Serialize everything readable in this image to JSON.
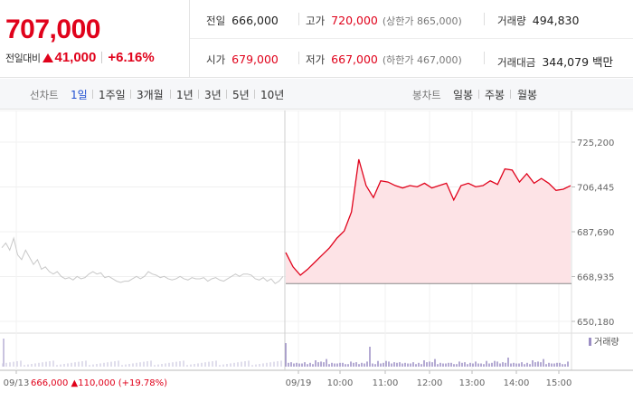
{
  "price": {
    "current": "707,000",
    "change_label": "전일대비",
    "change_value": "41,000",
    "change_pct": "+6.16%"
  },
  "stats": {
    "prev_close": {
      "label": "전일",
      "value": "666,000"
    },
    "high": {
      "label": "고가",
      "value": "720,000",
      "sub": "(상한가 865,000)"
    },
    "volume": {
      "label": "거래량",
      "value": "494,830"
    },
    "open": {
      "label": "시가",
      "value": "679,000"
    },
    "low": {
      "label": "저가",
      "value": "667,000",
      "sub": "(하한가 467,000)"
    },
    "trade_value": {
      "label": "거래대금",
      "value": "344,079 백만"
    }
  },
  "toolbar": {
    "line_label": "선차트",
    "line_items": [
      "1일",
      "1주일",
      "3개월",
      "1년",
      "3년",
      "5년",
      "10년"
    ],
    "active_index": 0,
    "candle_label": "봉차트",
    "candle_items": [
      "일봉",
      "주봉",
      "월봉"
    ]
  },
  "chart": {
    "y_ticks": [
      "725,200",
      "706,445",
      "687,690",
      "668,935",
      "650,180"
    ],
    "x_ticks": [
      "09/13",
      "09/19",
      "10:00",
      "11:00",
      "12:00",
      "13:00",
      "14:00",
      "15:00"
    ],
    "volume_legend": "거래량",
    "prev_info": "666,000 ▲110,000 (+19.78%)",
    "colors": {
      "up": "#e0021b",
      "fill": "#fde3e6",
      "history": "#c8c8c8",
      "volume": "#9b8ec4",
      "prev_line": "#888888"
    }
  },
  "chart_data": {
    "type": "line",
    "prev_close": 666000,
    "ylim": [
      650180,
      725200
    ],
    "history": [
      681000,
      683000,
      680000,
      685000,
      678000,
      676000,
      680000,
      677000,
      674000,
      676000,
      672000,
      673000,
      671000,
      670000,
      671000,
      669000,
      668000,
      668500,
      667500,
      669000,
      668000,
      668500,
      670000,
      671000,
      670000,
      670500,
      668500,
      669000,
      668000,
      667000,
      666500,
      667000,
      667000,
      668000,
      669000,
      668000,
      669000,
      671000,
      670000,
      669500,
      668500,
      669000,
      668000,
      667500,
      668000,
      669000,
      668000,
      667500,
      668500,
      668000,
      668000,
      668500,
      667000,
      668000,
      668500,
      667500,
      667000,
      668000,
      669000,
      670000,
      669000,
      670000,
      670000,
      669500,
      668000,
      667500,
      668500,
      667000,
      668000,
      666000,
      667000,
      669000
    ],
    "intraday_x": [
      "09:00",
      "09:10",
      "09:20",
      "09:30",
      "09:40",
      "09:50",
      "10:00",
      "10:10",
      "10:20",
      "10:30",
      "10:40",
      "10:50",
      "11:00",
      "11:10",
      "11:20",
      "11:30",
      "11:40",
      "11:50",
      "12:00",
      "12:10",
      "12:20",
      "12:30",
      "12:40",
      "12:50",
      "13:00",
      "13:10",
      "13:20",
      "13:30",
      "13:40",
      "13:50",
      "14:00",
      "14:10",
      "14:20",
      "14:30",
      "14:40",
      "14:50",
      "15:00",
      "15:10",
      "15:20",
      "15:30"
    ],
    "intraday_y": [
      679000,
      673000,
      669500,
      672000,
      675000,
      678000,
      681000,
      685000,
      688000,
      696000,
      718000,
      707000,
      702000,
      709000,
      708500,
      707000,
      706000,
      707000,
      706500,
      708000,
      706000,
      707000,
      708000,
      701000,
      707000,
      708000,
      706500,
      707000,
      709000,
      707500,
      714000,
      713500,
      708500,
      712000,
      708000,
      710000,
      708000,
      705000,
      705500,
      707000
    ]
  }
}
